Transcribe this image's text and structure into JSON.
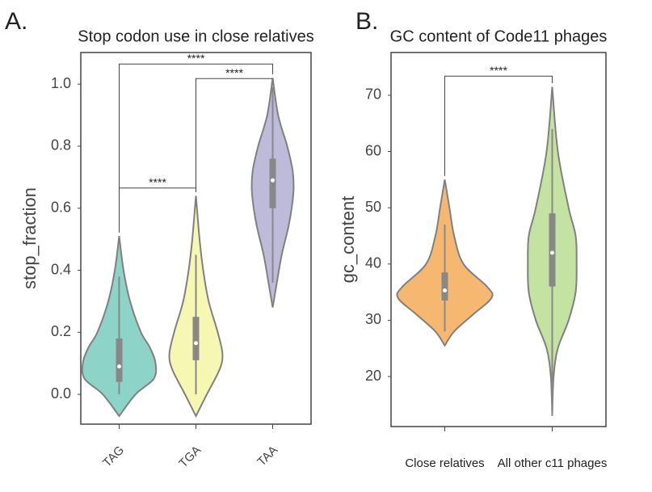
{
  "panel_labels": [
    "A.",
    "B."
  ],
  "chart_data": [
    {
      "type": "violin",
      "title": "Stop codon use in close relatives",
      "ylabel": "stop_fraction",
      "categories": [
        "TAG",
        "TGA",
        "TAA"
      ],
      "colors": [
        "#8dd3c7",
        "#f7f7b4",
        "#bebada"
      ],
      "ylim": [
        -0.096,
        1.102
      ],
      "yticks": [
        {
          "value": 0,
          "label": "0.0"
        },
        0.2,
        0.4,
        0.6,
        0.8,
        {
          "value": 1,
          "label": "1.0"
        }
      ],
      "violins": [
        {
          "q1": 0.04,
          "median": 0.09,
          "q3": 0.18,
          "whisker_low": 0,
          "whisker_high": 0.38,
          "density_y": [
            -0.07,
            0,
            0.05,
            0.1,
            0.15,
            0.2,
            0.3,
            0.4,
            0.51
          ],
          "density": [
            0,
            0.45,
            0.95,
            1,
            0.85,
            0.6,
            0.3,
            0.12,
            0
          ]
        },
        {
          "q1": 0.11,
          "median": 0.165,
          "q3": 0.25,
          "whisker_low": 0,
          "whisker_high": 0.45,
          "density_y": [
            -0.07,
            0,
            0.08,
            0.13,
            0.2,
            0.3,
            0.4,
            0.5,
            0.64
          ],
          "density": [
            0,
            0.3,
            0.65,
            0.73,
            0.6,
            0.35,
            0.2,
            0.1,
            0
          ]
        },
        {
          "q1": 0.6,
          "median": 0.69,
          "q3": 0.76,
          "whisker_low": 0.36,
          "whisker_high": 0.99,
          "density_y": [
            0.28,
            0.35,
            0.45,
            0.55,
            0.65,
            0.72,
            0.8,
            0.9,
            1.02
          ],
          "density": [
            0,
            0.1,
            0.25,
            0.45,
            0.57,
            0.55,
            0.4,
            0.15,
            0
          ]
        }
      ],
      "brackets": [
        {
          "pair": [
            "TAG",
            "TAA"
          ],
          "y": 1.065,
          "text": "****"
        },
        {
          "pair": [
            "TGA",
            "TAA"
          ],
          "y": 1.018,
          "text": "****"
        },
        {
          "pair": [
            "TAG",
            "TGA"
          ],
          "y": 0.665,
          "text": "****"
        }
      ]
    },
    {
      "type": "violin",
      "title": "GC content of Code11 phages",
      "ylabel": "gc_content",
      "categories": [
        "Close relatives",
        "All other c11 phages"
      ],
      "colors": [
        "#f6b871",
        "#c4e3a2"
      ],
      "ylim": [
        11.1,
        77.6
      ],
      "yticks": [
        20,
        30,
        40,
        50,
        60,
        70
      ],
      "violins": [
        {
          "q1": 33.5,
          "median": 35.3,
          "q3": 38.5,
          "whisker_low": 28,
          "whisker_high": 47,
          "density_y": [
            25.5,
            28,
            31,
            34,
            36,
            40,
            45,
            50,
            55
          ],
          "density": [
            0,
            0.2,
            0.6,
            1,
            0.9,
            0.4,
            0.2,
            0.1,
            0
          ]
        },
        {
          "q1": 36,
          "median": 42,
          "q3": 49,
          "whisker_low": 13,
          "whisker_high": 64,
          "density_y": [
            13,
            20,
            25,
            30,
            35,
            40,
            45,
            50,
            60,
            71.5
          ],
          "density": [
            0,
            0.03,
            0.12,
            0.35,
            0.5,
            0.52,
            0.5,
            0.35,
            0.12,
            0
          ]
        }
      ],
      "brackets": [
        {
          "pair": [
            "Close relatives",
            "All other c11 phages"
          ],
          "y": 73.4,
          "text": "****"
        }
      ]
    }
  ]
}
